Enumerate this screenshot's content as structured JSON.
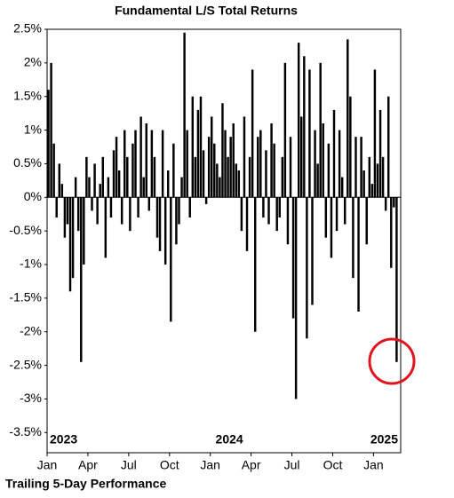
{
  "chart_data": {
    "type": "bar",
    "title": "Fundamental L/S Total Returns",
    "subtitle": "Trailing 5-Day Performance",
    "color": "#000000",
    "values": [
      1.6,
      2.0,
      0.8,
      -0.3,
      0.5,
      0.2,
      -0.6,
      -0.4,
      -1.4,
      -1.2,
      0.3,
      -0.5,
      -2.45,
      -1.0,
      0.6,
      0.3,
      -0.2,
      0.5,
      -0.4,
      0.2,
      0.6,
      -0.9,
      0.3,
      -0.3,
      0.7,
      0.9,
      0.4,
      -0.4,
      1.0,
      0.6,
      -0.5,
      0.8,
      1.0,
      -0.3,
      1.2,
      0.3,
      1.1,
      -0.2,
      1.0,
      0.6,
      -0.6,
      -0.8,
      1.0,
      -1.0,
      0.4,
      -1.85,
      0.8,
      -0.7,
      -0.4,
      0.3,
      2.45,
      1.0,
      -0.3,
      1.5,
      0.6,
      1.3,
      1.5,
      0.7,
      -0.1,
      0.9,
      1.2,
      0.8,
      0.5,
      0.3,
      1.4,
      1.0,
      0.6,
      0.9,
      1.1,
      0.5,
      0.4,
      -0.5,
      1.2,
      -0.8,
      0.6,
      1.9,
      -2.0,
      0.9,
      1.0,
      -0.3,
      0.7,
      -0.4,
      1.1,
      0.8,
      -0.5,
      -0.3,
      0.6,
      2.0,
      -0.7,
      0.9,
      -1.8,
      -3.0,
      2.3,
      1.2,
      2.1,
      -2.1,
      1.9,
      -1.6,
      1.0,
      0.5,
      2.0,
      1.1,
      -0.6,
      0.8,
      -0.9,
      1.3,
      -0.5,
      1.0,
      0.3,
      -0.4,
      2.35,
      1.5,
      -1.2,
      0.9,
      -1.7,
      0.9,
      0.4,
      -0.7,
      0.6,
      0.2,
      1.9,
      0.5,
      1.3,
      0.6,
      -0.2,
      1.5,
      -1.05,
      -0.15,
      -2.45
    ],
    "xlim": [
      0,
      130
    ],
    "xticks": [
      {
        "value": 0,
        "label": "Jan"
      },
      {
        "value": 15,
        "label": "Apr"
      },
      {
        "value": 30,
        "label": "Jul"
      },
      {
        "value": 45,
        "label": "Oct"
      },
      {
        "value": 60,
        "label": "Jan"
      },
      {
        "value": 75,
        "label": "Apr"
      },
      {
        "value": 90,
        "label": "Jul"
      },
      {
        "value": 105,
        "label": "Oct"
      },
      {
        "value": 120,
        "label": "Jan"
      }
    ],
    "year_labels": [
      {
        "value": 0,
        "label": "2023"
      },
      {
        "value": 67,
        "label": "2024"
      },
      {
        "value": 127,
        "label": "2025"
      }
    ],
    "ylim": [
      -3.8,
      2.5
    ],
    "yticks": [
      {
        "value": 2.5,
        "label": "2.5%"
      },
      {
        "value": 2,
        "label": "2%"
      },
      {
        "value": 1.5,
        "label": "1.5%"
      },
      {
        "value": 1,
        "label": "1%"
      },
      {
        "value": 0.5,
        "label": "0.5%"
      },
      {
        "value": 0,
        "label": "0%"
      },
      {
        "value": -0.5,
        "label": "-0.5%"
      },
      {
        "value": -1,
        "label": "-1%"
      },
      {
        "value": -1.5,
        "label": "-1.5%"
      },
      {
        "value": -2,
        "label": "-2%"
      },
      {
        "value": -2.5,
        "label": "-2.5%"
      },
      {
        "value": -3,
        "label": "-3%"
      },
      {
        "value": -3.5,
        "label": "-3.5%"
      }
    ]
  }
}
